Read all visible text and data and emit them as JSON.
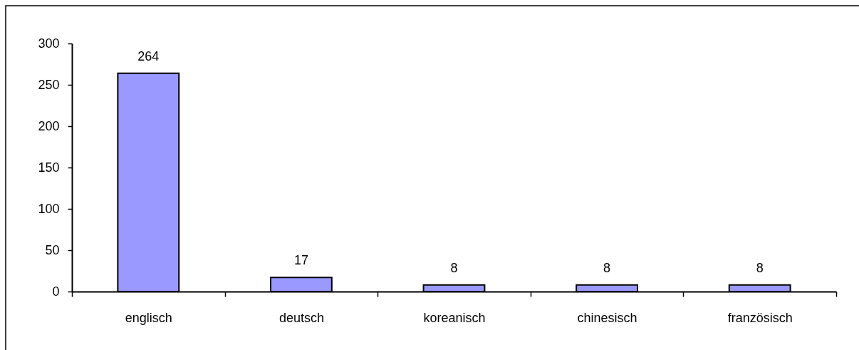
{
  "chart_data": {
    "type": "bar",
    "categories": [
      "englisch",
      "deutsch",
      "koreanisch",
      "chinesisch",
      "französisch"
    ],
    "values": [
      264,
      17,
      8,
      8,
      8
    ],
    "color": "#9999ff",
    "ylim": [
      0,
      300
    ],
    "yticks": [
      0,
      50,
      100,
      150,
      200,
      250,
      300
    ],
    "data_labels": true
  }
}
